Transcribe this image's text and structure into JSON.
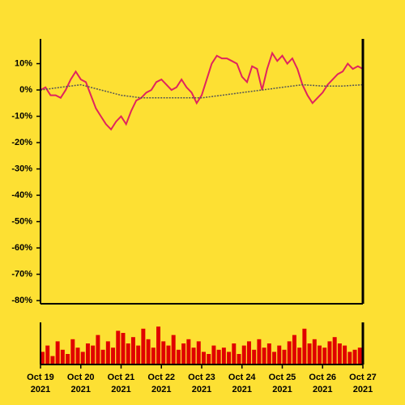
{
  "chart_data": [
    {
      "type": "line",
      "x": [
        0,
        0.125,
        0.25,
        0.375,
        0.5,
        0.625,
        0.75,
        0.875,
        1,
        1.125,
        1.25,
        1.375,
        1.5,
        1.625,
        1.75,
        1.875,
        2,
        2.125,
        2.25,
        2.375,
        2.5,
        2.625,
        2.75,
        2.875,
        3,
        3.125,
        3.25,
        3.375,
        3.5,
        3.625,
        3.75,
        3.875,
        4,
        4.125,
        4.25,
        4.375,
        4.5,
        4.625,
        4.75,
        4.875,
        5,
        5.125,
        5.25,
        5.375,
        5.5,
        5.625,
        5.75,
        5.875,
        6,
        6.125,
        6.25,
        6.375,
        6.5,
        6.625,
        6.75,
        6.875,
        7,
        7.125,
        7.25,
        7.375,
        7.5,
        7.625,
        7.75,
        7.875,
        8
      ],
      "series": [
        {
          "color": "#e0245e",
          "values": [
            0,
            1,
            -2,
            -2,
            -3,
            0,
            4,
            7,
            4,
            3,
            -2,
            -7,
            -10,
            -13,
            -15,
            -12,
            -10,
            -13,
            -8,
            -4,
            -3,
            -1,
            0,
            3,
            4,
            2,
            0,
            1,
            4,
            1,
            -1,
            -5,
            -2,
            4,
            10,
            13,
            12,
            12,
            11,
            10,
            5,
            3,
            9,
            8,
            0,
            8,
            14,
            11,
            13,
            10,
            12,
            8,
            2,
            -2,
            -5,
            -3,
            -1,
            2,
            4,
            6,
            7,
            10,
            8,
            9,
            8
          ]
        },
        {
          "color": "#555555",
          "dashed": true,
          "x": [
            0,
            0.5,
            1,
            1.5,
            2,
            2.5,
            3,
            3.5,
            4,
            4.5,
            5,
            5.5,
            6,
            6.5,
            7,
            7.5,
            8
          ],
          "values": [
            0,
            1,
            2,
            0,
            -2,
            -3,
            -3,
            -3,
            -3,
            -2,
            -1,
            0,
            1,
            2,
            1.5,
            1.5,
            2
          ]
        }
      ],
      "xlim": [
        0,
        8
      ],
      "ylim": [
        -81.2,
        19.4
      ],
      "yticks": [
        {
          "value": 10,
          "label": "10%"
        },
        {
          "value": 0,
          "label": "0%"
        },
        {
          "value": -10,
          "label": "-10%"
        },
        {
          "value": -20,
          "label": "-20%"
        },
        {
          "value": -30,
          "label": "-30%"
        },
        {
          "value": -40,
          "label": "-40%"
        },
        {
          "value": -50,
          "label": "-50%"
        },
        {
          "value": -60,
          "label": "-60%"
        },
        {
          "value": -70,
          "label": "-70%"
        },
        {
          "value": -80,
          "label": "-80%"
        }
      ]
    },
    {
      "type": "bar",
      "x": [
        0,
        0.125,
        0.25,
        0.375,
        0.5,
        0.625,
        0.75,
        0.875,
        1,
        1.125,
        1.25,
        1.375,
        1.5,
        1.625,
        1.75,
        1.875,
        2,
        2.125,
        2.25,
        2.375,
        2.5,
        2.625,
        2.75,
        2.875,
        3,
        3.125,
        3.25,
        3.375,
        3.5,
        3.625,
        3.75,
        3.875,
        4,
        4.125,
        4.25,
        4.375,
        4.5,
        4.625,
        4.75,
        4.875,
        5,
        5.125,
        5.25,
        5.375,
        5.5,
        5.625,
        5.75,
        5.875,
        6,
        6.125,
        6.25,
        6.375,
        6.5,
        6.625,
        6.75,
        6.875,
        7,
        7.125,
        7.25,
        7.375,
        7.5,
        7.625,
        7.75,
        7.875
      ],
      "values": [
        30,
        45,
        20,
        55,
        35,
        25,
        60,
        40,
        30,
        50,
        45,
        70,
        35,
        55,
        40,
        80,
        75,
        50,
        65,
        45,
        85,
        60,
        40,
        90,
        55,
        45,
        70,
        35,
        50,
        60,
        40,
        55,
        30,
        25,
        45,
        35,
        40,
        30,
        50,
        25,
        45,
        55,
        35,
        60,
        40,
        50,
        30,
        45,
        35,
        55,
        70,
        40,
        85,
        50,
        60,
        45,
        40,
        55,
        65,
        50,
        45,
        30,
        35,
        40
      ],
      "color": "#e00000",
      "xlim": [
        0,
        8
      ],
      "ylim": [
        0,
        100
      ],
      "xticks": [
        {
          "value": 0,
          "label": "Oct 19 2021"
        },
        {
          "value": 1,
          "label": "Oct 20 2021"
        },
        {
          "value": 2,
          "label": "Oct 21 2021"
        },
        {
          "value": 3,
          "label": "Oct 22 2021"
        },
        {
          "value": 4,
          "label": "Oct 23 2021"
        },
        {
          "value": 5,
          "label": "Oct 24 2021"
        },
        {
          "value": 6,
          "label": "Oct 25 2021"
        },
        {
          "value": 7,
          "label": "Oct 26 2021"
        },
        {
          "value": 8,
          "label": "Oct 27 2021"
        }
      ]
    }
  ]
}
